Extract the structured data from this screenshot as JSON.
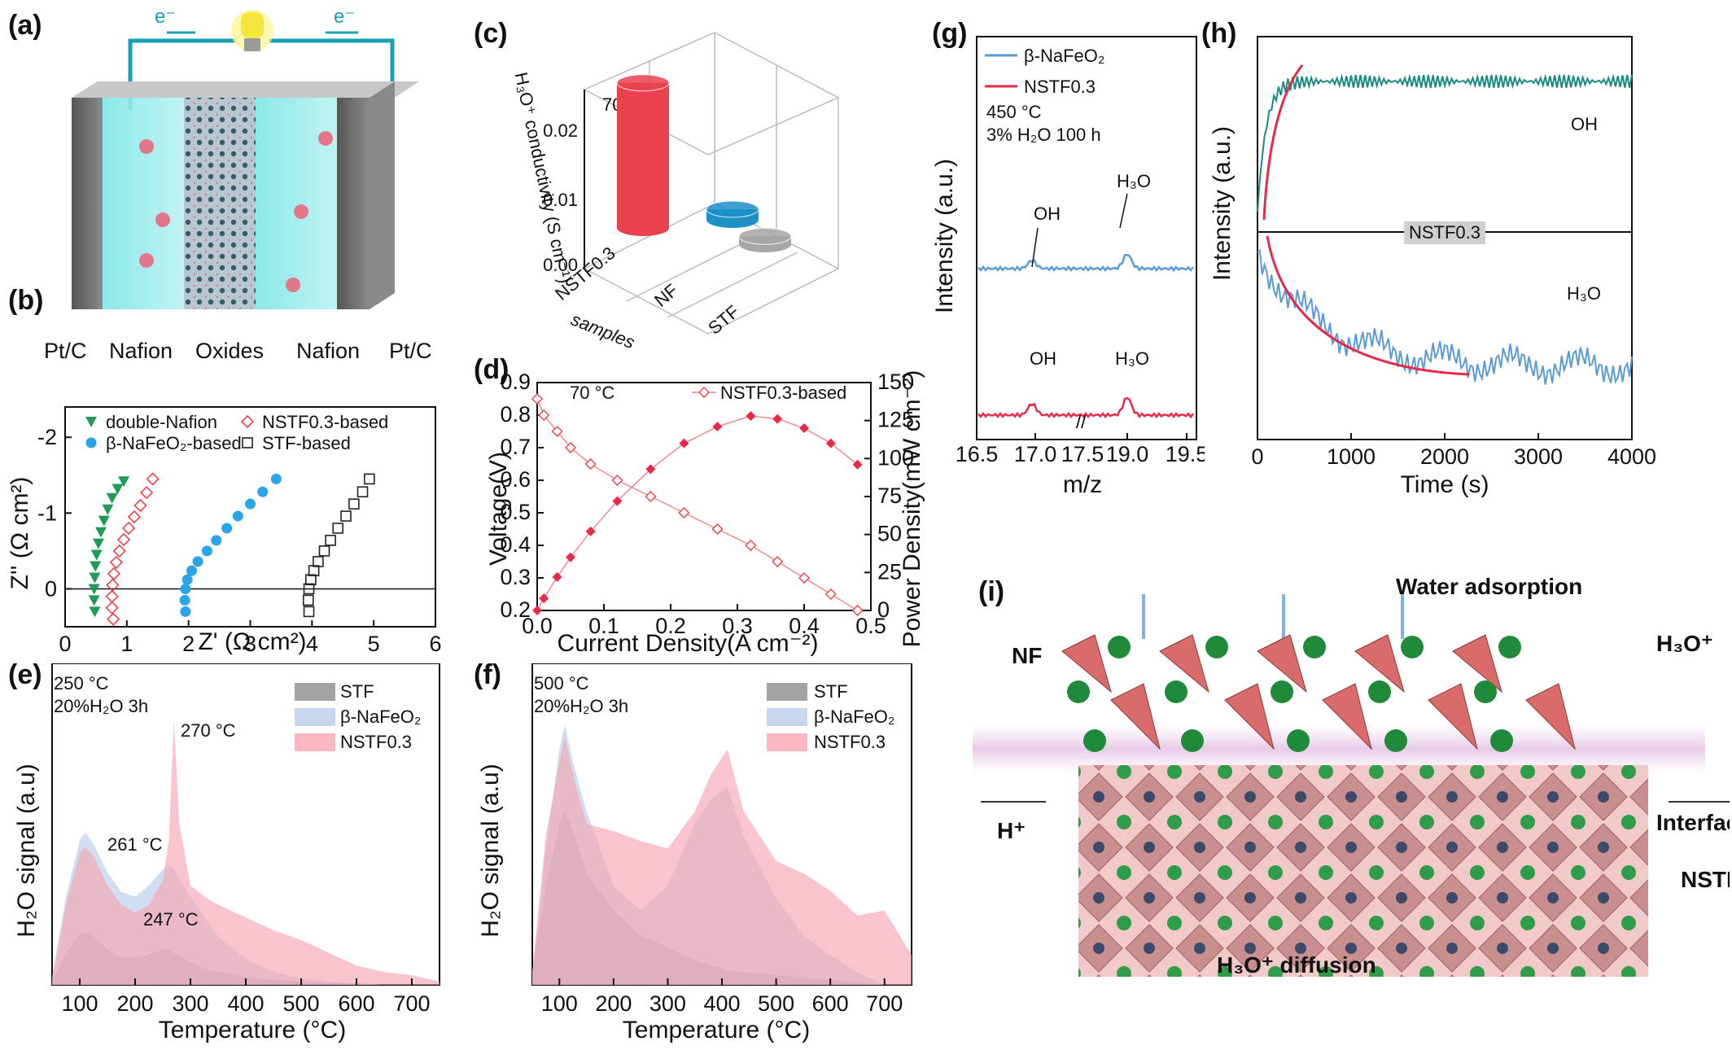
{
  "panel_labels": {
    "a": "(a)",
    "b": "(b)",
    "c": "(c)",
    "d": "(d)",
    "e": "(e)",
    "f": "(f)",
    "g": "(g)",
    "h": "(h)",
    "i": "(i)"
  },
  "colors": {
    "green": "#1f9a57",
    "pink": "#e8424f",
    "blue": "#2aa6e8",
    "black": "#222222",
    "teal": "#1a8c82",
    "ltblue": "#5a9bd5",
    "red_mc": "#e8294a"
  },
  "chart_data": [
    {
      "id": "a",
      "type": "other",
      "labels": {
        "e_left": "e⁻",
        "e_right": "e⁻",
        "layers": [
          "Pt/C",
          "Nafion",
          "Oxides",
          "Nafion",
          "Pt/C"
        ]
      }
    },
    {
      "id": "b",
      "type": "scatter",
      "xlabel": "Z' (Ω cm²)",
      "ylabel": "Z'' (Ω cm²)",
      "xlim": [
        0,
        6
      ],
      "ylim": [
        0.5,
        -2.4
      ],
      "xticks": [
        0,
        1,
        2,
        3,
        4,
        5,
        6
      ],
      "yticks": [
        0,
        -1,
        -2
      ],
      "series": [
        {
          "name": "double-Nafion",
          "color": "#1f9a57",
          "marker": "tri-down",
          "x": [
            0.48,
            0.47,
            0.47,
            0.48,
            0.49,
            0.51,
            0.54,
            0.58,
            0.63,
            0.69,
            0.76,
            0.85,
            0.95
          ],
          "y": [
            0.3,
            0.15,
            0.0,
            -0.15,
            -0.3,
            -0.45,
            -0.6,
            -0.75,
            -0.9,
            -1.05,
            -1.2,
            -1.32,
            -1.42
          ]
        },
        {
          "name": "NSTF0.3-based",
          "color": "#e8424f",
          "marker": "diamond-open",
          "x": [
            0.78,
            0.76,
            0.76,
            0.77,
            0.79,
            0.83,
            0.88,
            0.95,
            1.03,
            1.12,
            1.22,
            1.32,
            1.42
          ],
          "y": [
            0.4,
            0.25,
            0.1,
            -0.05,
            -0.2,
            -0.35,
            -0.5,
            -0.65,
            -0.8,
            -0.95,
            -1.1,
            -1.27,
            -1.45
          ]
        },
        {
          "name": "β-NaFeO₂-based",
          "color": "#2aa6e8",
          "marker": "circle",
          "x": [
            1.95,
            1.94,
            1.95,
            1.98,
            2.05,
            2.15,
            2.3,
            2.45,
            2.62,
            2.8,
            3.0,
            3.2,
            3.42
          ],
          "y": [
            0.3,
            0.15,
            0.0,
            -0.12,
            -0.24,
            -0.36,
            -0.5,
            -0.64,
            -0.8,
            -0.96,
            -1.12,
            -1.28,
            -1.45
          ]
        },
        {
          "name": "STF-based",
          "color": "#222222",
          "marker": "square-open",
          "x": [
            3.95,
            3.94,
            3.95,
            3.98,
            4.03,
            4.1,
            4.2,
            4.3,
            4.42,
            4.55,
            4.68,
            4.82,
            4.93
          ],
          "y": [
            0.3,
            0.15,
            0.0,
            -0.12,
            -0.24,
            -0.36,
            -0.5,
            -0.64,
            -0.8,
            -0.96,
            -1.12,
            -1.28,
            -1.45
          ]
        }
      ]
    },
    {
      "id": "c",
      "type": "bar",
      "categories": [
        "NSTF0.3",
        "NF",
        "STF"
      ],
      "values": [
        0.022,
        0.0016,
        0.0012
      ],
      "ylabel": "H₃O⁺ conductivity (S cm⁻¹)",
      "xlabel": "samples",
      "yticks": [
        "0.00",
        "0.01",
        "0.02"
      ],
      "annotation": "70 °C",
      "colors": [
        "#e8424f",
        "#1e90c8",
        "#a6a6a6"
      ]
    },
    {
      "id": "d",
      "type": "line",
      "xlabel": "Current Density(A cm⁻²)",
      "ylabel": "Voltage(V)",
      "y2label": "Power Density(mW cm⁻²)",
      "xlim": [
        0.0,
        0.5
      ],
      "ylim": [
        0.2,
        0.9
      ],
      "y2lim": [
        0,
        150
      ],
      "xticks": [
        0.0,
        0.1,
        0.2,
        0.3,
        0.4,
        0.5
      ],
      "yticks": [
        0.2,
        0.3,
        0.4,
        0.5,
        0.6,
        0.7,
        0.8,
        0.9
      ],
      "y2ticks": [
        0,
        25,
        50,
        75,
        100,
        125,
        150
      ],
      "annotation": "70 °C",
      "legend": "NSTF0.3-based",
      "series": [
        {
          "name": "Voltage",
          "x": [
            0.0,
            0.01,
            0.03,
            0.05,
            0.08,
            0.12,
            0.17,
            0.22,
            0.27,
            0.32,
            0.36,
            0.4,
            0.44,
            0.48
          ],
          "y": [
            0.85,
            0.8,
            0.75,
            0.7,
            0.65,
            0.6,
            0.55,
            0.5,
            0.45,
            0.4,
            0.35,
            0.3,
            0.25,
            0.2
          ]
        },
        {
          "name": "Power",
          "x": [
            0.0,
            0.01,
            0.03,
            0.05,
            0.08,
            0.12,
            0.17,
            0.22,
            0.27,
            0.32,
            0.36,
            0.4,
            0.44,
            0.48
          ],
          "y": [
            0,
            8,
            22,
            35,
            52,
            72,
            93,
            110,
            121,
            128,
            126,
            120,
            110,
            96
          ]
        }
      ]
    },
    {
      "id": "e",
      "type": "area",
      "xlabel": "Temperature (°C)",
      "ylabel": "H₂O signal (a.u)",
      "xlim": [
        50,
        750
      ],
      "xticks": [
        100,
        200,
        300,
        400,
        500,
        600,
        700
      ],
      "annotations": [
        "250 °C",
        "20%H₂O 3h",
        "270 °C",
        "261 °C",
        "247 °C"
      ],
      "x": [
        50,
        75,
        100,
        110,
        125,
        150,
        175,
        200,
        225,
        250,
        261,
        270,
        280,
        300,
        325,
        350,
        400,
        450,
        500,
        550,
        600,
        650,
        700,
        750
      ],
      "series": [
        {
          "name": "STF",
          "color": "#8c8c8c",
          "values": [
            0.02,
            0.2,
            0.32,
            0.33,
            0.3,
            0.22,
            0.17,
            0.17,
            0.19,
            0.22,
            0.22,
            0.2,
            0.18,
            0.14,
            0.1,
            0.08,
            0.05,
            0.03,
            0.02,
            0.01,
            0.01,
            0.0,
            0.0,
            0.0
          ]
        },
        {
          "name": "β-NaFeO₂",
          "color": "#b9cde8",
          "values": [
            0.05,
            0.55,
            0.9,
            0.95,
            0.88,
            0.7,
            0.58,
            0.55,
            0.62,
            0.72,
            0.75,
            0.72,
            0.66,
            0.55,
            0.42,
            0.3,
            0.16,
            0.08,
            0.04,
            0.02,
            0.01,
            0.0,
            0.0,
            0.0
          ]
        },
        {
          "name": "NSTF0.3",
          "color": "#f6a5b2",
          "values": [
            0.03,
            0.5,
            0.82,
            0.86,
            0.8,
            0.62,
            0.5,
            0.45,
            0.5,
            0.65,
            0.9,
            1.65,
            1.0,
            0.62,
            0.55,
            0.5,
            0.42,
            0.34,
            0.28,
            0.2,
            0.12,
            0.08,
            0.06,
            0.02
          ]
        }
      ]
    },
    {
      "id": "f",
      "type": "area",
      "xlabel": "Temperature (°C)",
      "ylabel": "H₂O signal (a.u)",
      "xlim": [
        50,
        750
      ],
      "xticks": [
        100,
        200,
        300,
        400,
        500,
        600,
        700
      ],
      "annotations": [
        "500 °C",
        "20%H₂O 3h"
      ],
      "x": [
        50,
        75,
        100,
        110,
        125,
        150,
        200,
        250,
        300,
        350,
        380,
        410,
        440,
        500,
        550,
        600,
        650,
        700,
        750
      ],
      "series": [
        {
          "name": "STF",
          "color": "#8c8c8c",
          "values": [
            0.05,
            0.4,
            0.65,
            0.7,
            0.62,
            0.45,
            0.3,
            0.2,
            0.15,
            0.1,
            0.08,
            0.06,
            0.05,
            0.04,
            0.03,
            0.02,
            0.01,
            0.0,
            0.0
          ]
        },
        {
          "name": "β-NaFeO₂",
          "color": "#b9cde8",
          "values": [
            0.05,
            0.55,
            0.95,
            1.05,
            0.9,
            0.7,
            0.4,
            0.3,
            0.4,
            0.65,
            0.75,
            0.8,
            0.6,
            0.35,
            0.2,
            0.12,
            0.05,
            0.0,
            0.0
          ]
        },
        {
          "name": "NSTF0.3",
          "color": "#f6a5b2",
          "values": [
            0.05,
            0.6,
            0.9,
            1.0,
            0.85,
            0.65,
            0.62,
            0.58,
            0.55,
            0.7,
            0.85,
            0.95,
            0.7,
            0.5,
            0.45,
            0.38,
            0.28,
            0.3,
            0.12
          ]
        }
      ]
    },
    {
      "id": "g",
      "type": "line",
      "xlabel": "m/z",
      "ylabel": "Intensity (a.u.)",
      "xticks": [
        "16.5",
        "17.0",
        "17.5",
        "19.0",
        "19.5"
      ],
      "legend": [
        "β-NaFeO₂",
        "NSTF0.3"
      ],
      "annotations": [
        "450 °C",
        "3% H₂O 100 h",
        "OH",
        "H₃O",
        "OH",
        "H₃O"
      ]
    },
    {
      "id": "h",
      "type": "line",
      "xlabel": "Time (s)",
      "ylabel": "Intensity (a.u.)",
      "xlim": [
        0,
        4000
      ],
      "xticks": [
        0,
        1000,
        2000,
        3000,
        4000
      ],
      "annotations": [
        "OH",
        "NSTF0.3",
        "H₃O"
      ]
    },
    {
      "id": "i",
      "type": "other",
      "labels": {
        "title": "Water adsorption",
        "nf": "NF",
        "h3o": "H₃O⁺",
        "h": "H⁺",
        "interface": "Interface",
        "nstf": "NSTF",
        "diffusion": "H₃O⁺ diffusion"
      }
    }
  ]
}
